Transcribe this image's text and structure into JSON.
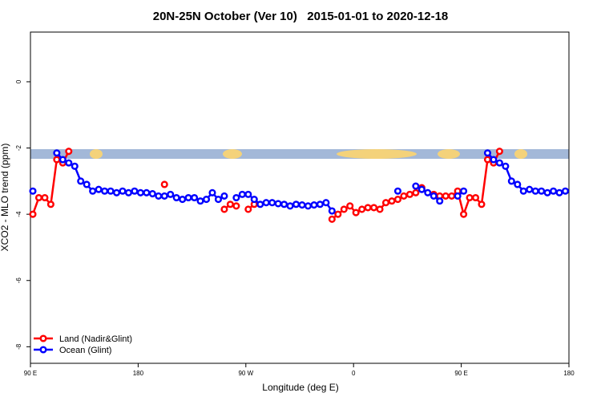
{
  "chart_data": {
    "type": "line",
    "title": "20N-25N October (Ver 10)   2015-01-01 to 2020-12-18",
    "x_label": "Longitude (deg E)",
    "y_label": "XCO2 - MLO trend (ppm)",
    "x": [
      92,
      97,
      102,
      107,
      112,
      117,
      122,
      127,
      132,
      137,
      142,
      147,
      152,
      157,
      162,
      167,
      172,
      177,
      182,
      187,
      192,
      197,
      202,
      207,
      212,
      217,
      222,
      227,
      232,
      237,
      242,
      247,
      252,
      257,
      262,
      267,
      272,
      277,
      282,
      287,
      292,
      297,
      302,
      307,
      312,
      317,
      322,
      327,
      332,
      337,
      342,
      347,
      352,
      357,
      362,
      367,
      372,
      377,
      382,
      387,
      392,
      397,
      402,
      407,
      412,
      417,
      422,
      427,
      432,
      437,
      442,
      447,
      452,
      457,
      462,
      467,
      472,
      477,
      482,
      487,
      492,
      497,
      502,
      507,
      512,
      517,
      522,
      527,
      532,
      537
    ],
    "series": [
      {
        "name": "Land (Nadir&Glint)",
        "color": "#ff0000",
        "values": [
          -4.0,
          -3.5,
          -3.5,
          -3.7,
          -2.35,
          -2.45,
          -2.1,
          null,
          null,
          null,
          null,
          null,
          null,
          null,
          null,
          null,
          null,
          null,
          null,
          null,
          null,
          null,
          -3.1,
          null,
          null,
          null,
          null,
          null,
          null,
          null,
          null,
          null,
          -3.85,
          -3.7,
          -3.75,
          null,
          -3.85,
          -3.7,
          null,
          null,
          null,
          null,
          null,
          null,
          null,
          null,
          null,
          null,
          null,
          null,
          -4.15,
          -4.0,
          -3.85,
          -3.75,
          -3.95,
          -3.85,
          -3.8,
          -3.8,
          -3.85,
          -3.65,
          -3.6,
          -3.55,
          -3.45,
          -3.4,
          -3.35,
          -3.2,
          null,
          -3.4,
          -3.45,
          -3.45,
          -3.45,
          -3.3,
          -4.0,
          -3.5,
          -3.5,
          -3.7,
          -2.35,
          -2.45,
          -2.1,
          null,
          null,
          null,
          null,
          null,
          null,
          null,
          null,
          null,
          null,
          null
        ]
      },
      {
        "name": "Ocean (Glint)",
        "color": "#0000ff",
        "values": [
          -3.3,
          null,
          null,
          null,
          -2.15,
          -2.35,
          -2.45,
          -2.55,
          -3.0,
          -3.1,
          -3.3,
          -3.25,
          -3.3,
          -3.3,
          -3.35,
          -3.3,
          -3.35,
          -3.3,
          -3.35,
          -3.35,
          -3.38,
          -3.45,
          -3.45,
          -3.4,
          -3.5,
          -3.55,
          -3.5,
          -3.5,
          -3.6,
          -3.55,
          -3.35,
          -3.55,
          -3.45,
          null,
          -3.5,
          -3.4,
          -3.4,
          -3.55,
          -3.7,
          -3.65,
          -3.65,
          -3.68,
          -3.7,
          -3.75,
          -3.7,
          -3.72,
          -3.75,
          -3.72,
          -3.7,
          -3.65,
          -3.9,
          null,
          null,
          null,
          null,
          null,
          null,
          null,
          null,
          null,
          null,
          -3.3,
          null,
          null,
          -3.15,
          -3.25,
          -3.35,
          -3.45,
          -3.6,
          null,
          null,
          -3.45,
          -3.3,
          null,
          null,
          null,
          -2.15,
          -2.35,
          -2.45,
          -2.55,
          -3.0,
          -3.1,
          -3.3,
          -3.25,
          -3.3,
          -3.3,
          -3.35,
          -3.3,
          -3.35,
          -3.3
        ]
      }
    ],
    "xlim": [
      90,
      540
    ],
    "xticks": [
      {
        "value": 90,
        "label": "90 E"
      },
      180,
      {
        "value": 270,
        "label": "90 W"
      },
      {
        "value": 360,
        "label": "0"
      },
      {
        "value": 450,
        "label": "90 E"
      },
      {
        "value": 540,
        "label": "180"
      }
    ],
    "ylim": [
      -8.5,
      1.5
    ],
    "yticks": [
      0,
      -2,
      -4,
      -6,
      -8
    ],
    "legend": "bottom-left"
  }
}
